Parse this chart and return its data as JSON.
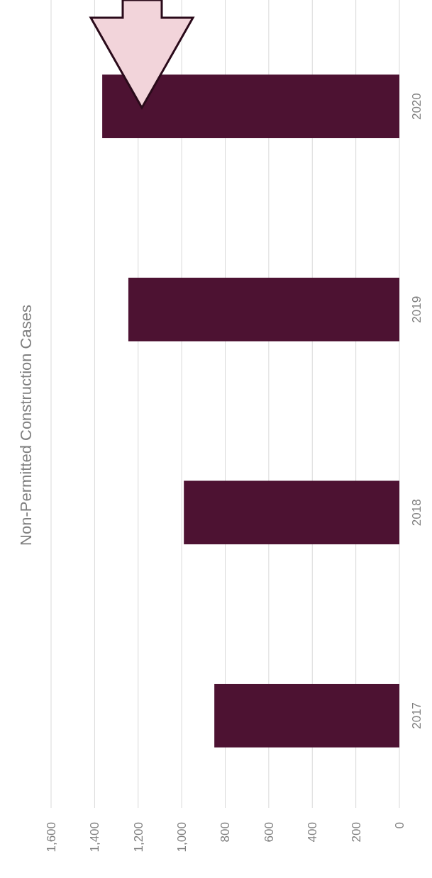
{
  "chart_data": {
    "type": "bar",
    "title": "Non-Permitted Construction Cases",
    "orientation": "horizontal",
    "categories": [
      "2020",
      "2019",
      "2018",
      "2017"
    ],
    "values": [
      1365,
      1245,
      990,
      850
    ],
    "color": "#4d1232",
    "xlim": [
      1600,
      0
    ],
    "xticks": [
      {
        "value": 1600,
        "label": "1,600"
      },
      {
        "value": 1400,
        "label": "1,400"
      },
      {
        "value": 1200,
        "label": "1,200"
      },
      {
        "value": 1000,
        "label": "1,000"
      },
      800,
      600,
      400,
      200,
      0
    ],
    "grid": "x"
  }
}
